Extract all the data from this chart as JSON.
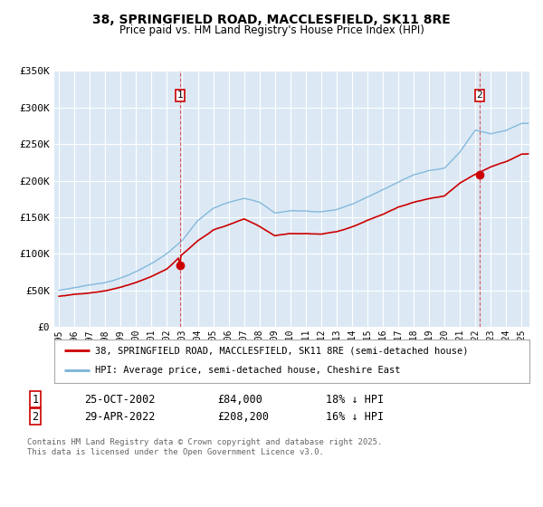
{
  "title": "38, SPRINGFIELD ROAD, MACCLESFIELD, SK11 8RE",
  "subtitle": "Price paid vs. HM Land Registry's House Price Index (HPI)",
  "background_color": "#ffffff",
  "plot_bg_color": "#dce9f5",
  "grid_color": "#ffffff",
  "hpi_color": "#7ab3d9",
  "price_color": "#cc0000",
  "sale1_date": "25-OCT-2002",
  "sale1_price": 84000,
  "sale1_hpi_pct": "18% ↓ HPI",
  "sale2_date": "29-APR-2022",
  "sale2_price": 208200,
  "sale2_hpi_pct": "16% ↓ HPI",
  "legend_label1": "38, SPRINGFIELD ROAD, MACCLESFIELD, SK11 8RE (semi-detached house)",
  "legend_label2": "HPI: Average price, semi-detached house, Cheshire East",
  "footer": "Contains HM Land Registry data © Crown copyright and database right 2025.\nThis data is licensed under the Open Government Licence v3.0.",
  "ylim": [
    0,
    350000
  ],
  "yticks": [
    0,
    50000,
    100000,
    150000,
    200000,
    250000,
    300000,
    350000
  ],
  "ytick_labels": [
    "£0",
    "£50K",
    "£100K",
    "£150K",
    "£200K",
    "£250K",
    "£300K",
    "£350K"
  ],
  "xmin": 1994.7,
  "xmax": 2025.5,
  "sale1_year": 2002.8,
  "sale2_year": 2022.25,
  "hpi_anchor_years": [
    1995,
    1996,
    1997,
    1998,
    1999,
    2000,
    2001,
    2002,
    2003,
    2004,
    2005,
    2006,
    2007,
    2008,
    2009,
    2010,
    2011,
    2012,
    2013,
    2014,
    2015,
    2016,
    2017,
    2018,
    2019,
    2020,
    2021,
    2022,
    2023,
    2024,
    2025
  ],
  "hpi_anchor_vals": [
    50000,
    54000,
    57000,
    61000,
    67000,
    75000,
    86000,
    100000,
    118000,
    145000,
    162000,
    170000,
    175000,
    170000,
    155000,
    158000,
    158000,
    157000,
    160000,
    168000,
    178000,
    188000,
    198000,
    208000,
    215000,
    218000,
    240000,
    270000,
    265000,
    270000,
    280000
  ],
  "prop_anchor_years": [
    1995,
    1996,
    1997,
    1998,
    1999,
    2000,
    2001,
    2002,
    2003,
    2004,
    2005,
    2006,
    2007,
    2008,
    2009,
    2010,
    2011,
    2012,
    2013,
    2014,
    2015,
    2016,
    2017,
    2018,
    2019,
    2020,
    2021,
    2022,
    2023,
    2024,
    2025
  ],
  "prop_anchor_vals": [
    42000,
    45000,
    47000,
    50000,
    55000,
    62000,
    70000,
    80000,
    100000,
    118000,
    133000,
    140000,
    148000,
    138000,
    125000,
    128000,
    128000,
    127000,
    130000,
    136000,
    145000,
    153000,
    163000,
    170000,
    175000,
    179000,
    196000,
    208000,
    218000,
    225000,
    235000
  ]
}
